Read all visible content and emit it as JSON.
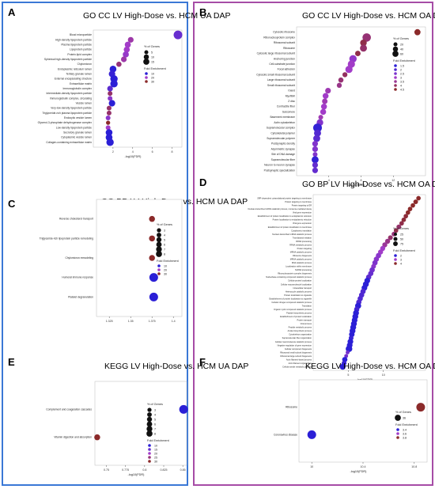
{
  "colors": {
    "frame_left": "#3a78d6",
    "frame_right": "#a64ca6",
    "low": "#2b1fd6",
    "high": "#8b2a2a"
  },
  "chart_data": [
    {
      "id": "A",
      "letter": "A",
      "type": "scatter",
      "title": "GO CC LV High-Dose vs. HCM UA DAP",
      "xlabel": "-log10(FDR)",
      "ylabel": "",
      "xlim": [
        0,
        9
      ],
      "xticks": [
        2,
        4,
        6,
        8
      ],
      "ylim": [
        0,
        24
      ],
      "grid": false,
      "categories": [
        "Blood microparticle",
        "High-density lipoprotein particle",
        "Plasma lipoprotein particle",
        "Lipoprotein particle",
        "Protein-lipid complex",
        "Spherical high-density lipoprotein particle",
        "Chylomicron",
        "Endoplasmic reticulum lumen",
        "Tertiary granule lumen",
        "External encapsulating structure",
        "Extracellular matrix",
        "Immunoglobulin complex",
        "Intermediate-density lipoprotein particle",
        "Immunoglobulin complex, circulating",
        "Vesicle lumen",
        "Very-low-density lipoprotein particle",
        "Triglyceride-rich plasma lipoprotein particle",
        "Endocytic vesicle lumen",
        "Glycerol-3-phosphate dehydrogenase complex",
        "Low-density lipoprotein particle",
        "Secretory granule lumen",
        "Cytoplasmic vesicle lumen",
        "Collagen-containing extracellular matrix"
      ],
      "x": [
        8.6,
        3.8,
        3.5,
        3.4,
        3.3,
        3.1,
        2.6,
        2.0,
        1.9,
        2.1,
        2.1,
        1.7,
        1.7,
        1.7,
        1.9,
        1.6,
        1.6,
        1.5,
        1.5,
        1.5,
        1.6,
        1.6,
        1.7
      ],
      "genes": [
        15,
        5,
        6,
        6,
        6,
        5,
        4,
        8,
        7,
        10,
        10,
        5,
        3,
        3,
        7,
        3,
        3,
        3,
        2,
        3,
        8,
        8,
        10
      ],
      "fold": [
        15,
        22,
        20,
        20,
        19,
        22,
        25,
        10,
        11,
        9,
        9,
        14,
        26,
        18,
        9,
        26,
        26,
        18,
        30,
        20,
        8,
        8,
        8
      ],
      "size_legend": {
        "title": "% of Genes",
        "values": [
          5,
          10,
          15
        ]
      },
      "fold_legend": {
        "title": "Fold Enrichment",
        "values": [
          10,
          20,
          30
        ]
      }
    },
    {
      "id": "B",
      "letter": "B",
      "type": "scatter",
      "title": "GO CC LV High-Dose vs. HCM OA DAP",
      "xlabel": "-log10(FDR)",
      "ylabel": "",
      "xlim": [
        0,
        16
      ],
      "xticks": [
        4,
        8,
        12
      ],
      "ylim": [
        0,
        31
      ],
      "grid": false,
      "categories": [
        "Cytosolic ribosome",
        "Ribonucleoprotein complex",
        "Ribosomal subunit",
        "Ribosome",
        "Cytosolic large ribosomal subunit",
        "Anchoring junction",
        "Cell-substrate junction",
        "Focal adhesion",
        "Cytosolic small ribosomal subunit",
        "Large ribosomal subunit",
        "Small ribosomal subunit",
        "I band",
        "Myofibril",
        "Z disc",
        "Contractile fiber",
        "Sarcomere",
        "Basement membrane",
        "Actin cytoskeleton",
        "Supramolecular complex",
        "Cytoskeletal polymer",
        "Supramolecular polymer",
        "Postsynaptic density",
        "Asymmetric synapse",
        "Site of DNA damage",
        "Supramolecular fiber",
        "Neuron to neuron synapse",
        "Postsynaptic specialization"
      ],
      "x": [
        15.0,
        8.7,
        8.3,
        8.3,
        7.6,
        7.0,
        6.8,
        6.5,
        6.0,
        5.5,
        5.3,
        3.9,
        3.6,
        3.5,
        3.4,
        3.3,
        3.0,
        2.9,
        2.6,
        2.6,
        2.5,
        2.3,
        2.3,
        2.3,
        2.3,
        2.3,
        2.3
      ],
      "genes": [
        25,
        55,
        30,
        35,
        18,
        40,
        38,
        38,
        14,
        15,
        14,
        20,
        22,
        18,
        22,
        22,
        12,
        30,
        60,
        35,
        35,
        20,
        20,
        12,
        35,
        20,
        20
      ],
      "fold": [
        4.8,
        3.8,
        4.2,
        3.9,
        4.2,
        2.8,
        3.0,
        3.0,
        4.0,
        3.8,
        3.6,
        3.2,
        3.0,
        3.2,
        3.0,
        3.0,
        3.2,
        2.6,
        1.6,
        2.0,
        2.1,
        2.6,
        2.6,
        2.6,
        1.6,
        2.2,
        2.2
      ],
      "size_legend": {
        "title": "% of Genes",
        "values": [
          20,
          40,
          60
        ]
      },
      "fold_legend": {
        "title": "Fold Enrichment",
        "values": [
          1.5,
          2.0,
          2.5,
          3.0,
          3.5,
          4.0,
          4.5
        ]
      }
    },
    {
      "id": "C",
      "letter": "C",
      "type": "scatter",
      "title": "GO BP LV High-Dose vs. HCM UA DAP",
      "xlabel": "",
      "ylabel": "",
      "xlim": [
        1.31,
        1.41
      ],
      "xticks": [
        1.325,
        1.35,
        1.375,
        1.4
      ],
      "ylim": [
        0,
        6
      ],
      "grid": false,
      "categories": [
        "Reverse cholesterol transport",
        "Triglyceride-rich lipoprotein particle remodeling",
        "Chylomicron remodeling",
        "Humoral immune response",
        "Platelet degranulation"
      ],
      "x": [
        1.375,
        1.375,
        1.375,
        1.377,
        1.377
      ],
      "genes": [
        3,
        3,
        3,
        8,
        8
      ],
      "fold": [
        30,
        30,
        30,
        8,
        10
      ],
      "size_legend": {
        "title": "% of Genes",
        "values": [
          3,
          4,
          5,
          6,
          7,
          8
        ]
      },
      "fold_legend": {
        "title": "Fold Enrichment",
        "values": [
          10,
          20,
          30
        ]
      }
    },
    {
      "id": "D",
      "letter": "D",
      "type": "scatter",
      "title": "GO BP LV High-Dose vs. HCM OA DAP",
      "xlabel": "-log10(FDR)",
      "ylabel": "",
      "xlim": [
        0,
        16
      ],
      "xticks": [
        5,
        10
      ],
      "ylim": [
        0,
        51
      ],
      "grid": false,
      "categories": [
        "SRP-dependent cotranslational protein targeting to membrane",
        "Protein targeting to membrane",
        "Protein targeting to ER",
        "Nuclear-transcribed mRNA catabolic process, nonsense-mediated decay",
        "Viral gene expression",
        "Establishment of protein localization to endoplasmic reticulum",
        "Protein localization to endoplasmic reticulum",
        "Viral gene expression",
        "Establishment of protein localization to membrane",
        "Cytoplasmic translation",
        "Nuclear-transcribed mRNA catabolic process",
        "Translational initiation",
        "RRNA processing",
        "RRNA metabolic process",
        "Protein targeting",
        "MRNA catabolic process",
        "Ribosome biogenesis",
        "MRNA catabolic process",
        "RNA catabolic process",
        "Localization within membrane",
        "NcRNA processing",
        "Ribonucleoprotein complex biogenesis",
        "Nucleobase-containing compound catabolic process",
        "Cellular protein localization",
        "Cellular macromolecule localization",
        "Intracellular transport",
        "Heterocycle catabolic process",
        "Protein localization to organelle",
        "Establishment of protein localization to organelle",
        "Cellular nitrogen compound catabolic process",
        "Translation",
        "Organic cyclic compound catabolic process",
        "Peptide biosynthetic process",
        "Establishment of protein localization",
        "Protein transport",
        "Viral process",
        "Peptide metabolic process",
        "Amide biosynthetic process",
        "Cytoskeleton organization",
        "Supramolecular fiber organization",
        "Cellular macromolecule catabolic process",
        "Negative regulation of gene expression",
        "Cellular component biogenesis",
        "Ribosomal small subunit biogenesis",
        "Ribosomal large subunit biogenesis",
        "Actin filament-based process",
        "Actin filament organization",
        "Cellular amide metabolic process"
      ],
      "x": [
        15.0,
        14.6,
        14.2,
        13.8,
        13.5,
        13.2,
        12.9,
        12.6,
        12.2,
        11.8,
        11.5,
        11.0,
        10.6,
        10.2,
        9.9,
        9.6,
        9.3,
        9.0,
        8.8,
        8.6,
        8.4,
        8.2,
        7.9,
        7.7,
        7.5,
        7.3,
        7.1,
        6.9,
        6.7,
        6.5,
        6.4,
        6.2,
        6.1,
        6.0,
        5.9,
        5.8,
        5.7,
        5.6,
        5.5,
        5.4,
        5.3,
        5.2,
        5.1,
        4.9,
        4.7,
        4.5,
        4.4,
        4.2
      ],
      "genes": [
        25,
        28,
        25,
        25,
        25,
        25,
        25,
        25,
        30,
        25,
        28,
        30,
        35,
        35,
        35,
        35,
        40,
        38,
        40,
        30,
        40,
        40,
        40,
        50,
        55,
        50,
        40,
        40,
        40,
        40,
        60,
        40,
        55,
        55,
        50,
        55,
        55,
        55,
        45,
        30,
        50,
        50,
        75,
        15,
        15,
        40,
        30,
        55
      ],
      "fold": [
        4.5,
        4.2,
        4.2,
        4.0,
        4.0,
        3.9,
        3.9,
        3.8,
        3.6,
        3.8,
        3.5,
        3.6,
        3.4,
        3.3,
        3.0,
        3.0,
        2.8,
        2.8,
        2.7,
        2.8,
        2.6,
        2.5,
        2.4,
        2.0,
        1.8,
        2.0,
        2.3,
        2.3,
        2.3,
        2.3,
        2.0,
        2.2,
        2.0,
        2.0,
        2.0,
        2.0,
        2.0,
        2.0,
        2.0,
        2.1,
        2.0,
        1.9,
        1.5,
        2.6,
        2.6,
        2.0,
        2.1,
        1.8
      ],
      "size_legend": {
        "title": "% of Genes",
        "values": [
          25,
          50,
          75
        ]
      },
      "fold_legend": {
        "title": "Fold Enrichment",
        "values": [
          2,
          3,
          4
        ]
      }
    },
    {
      "id": "E",
      "letter": "E",
      "type": "scatter",
      "title": "KEGG LV High-Dose vs. HCM UA DAP",
      "xlabel": "-log10(FDR)",
      "ylabel": "",
      "xlim": [
        0.735,
        0.855
      ],
      "xticks": [
        0.75,
        0.775,
        0.8,
        0.825,
        0.85
      ],
      "ylim": [
        0,
        3
      ],
      "grid": false,
      "categories": [
        "Complement and coagulation cascades",
        "Vitamin digestion and absorption"
      ],
      "x": [
        0.851,
        0.738
      ],
      "genes": [
        8,
        3
      ],
      "fold": [
        10,
        30
      ],
      "size_legend": {
        "title": "% of Genes",
        "values": [
          3,
          4,
          5,
          6,
          7,
          8
        ]
      },
      "fold_legend": {
        "title": "Fold Enrichment",
        "values": [
          10,
          15,
          20,
          25,
          30
        ]
      }
    },
    {
      "id": "F",
      "letter": "F",
      "type": "scatter",
      "title": "KEGG LV High-Dose vs. HCM OA DAP",
      "xlabel": "-log10(FDR)",
      "ylabel": "",
      "xlim": [
        9.9,
        10.9
      ],
      "xticks": [
        10.0,
        10.4,
        10.8
      ],
      "ylim": [
        0,
        3
      ],
      "grid": false,
      "categories": [
        "Ribosome",
        "Coronavirus disease"
      ],
      "x": [
        10.85,
        10.0
      ],
      "genes": [
        36,
        36
      ],
      "fold": [
        5.8,
        3.4
      ],
      "size_legend": {
        "title": "% of Genes",
        "values": [
          36
        ]
      },
      "fold_legend": {
        "title": "Fold Enrichment",
        "values": [
          3.4,
          3.6,
          3.8
        ]
      }
    }
  ]
}
